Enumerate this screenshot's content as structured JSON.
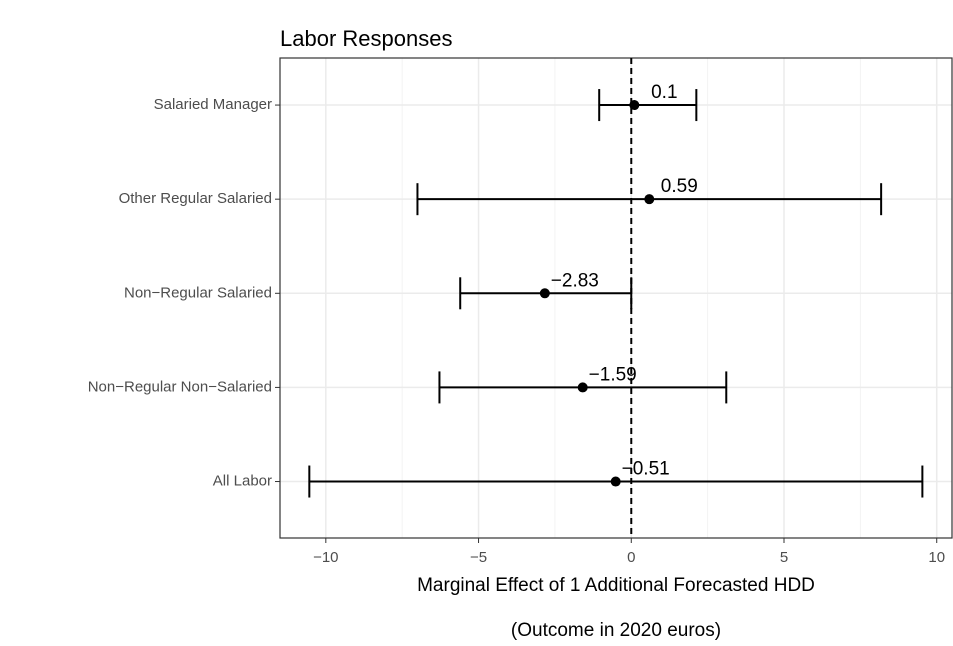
{
  "chart_data": {
    "type": "errorbar",
    "title": "Labor Responses",
    "x_label": "Marginal Effect of 1 Additional Forecasted HDD",
    "x_label_2": "(Outcome in 2020 euros)",
    "categories": [
      "Salaried Manager",
      "Other Regular Salaried",
      "Non−Regular Salaried",
      "Non−Regular Non−Salaried",
      "All Labor"
    ],
    "values": [
      0.1,
      0.59,
      -2.83,
      -1.59,
      -0.51
    ],
    "value_labels": [
      "0.1",
      "0.59",
      "−2.83",
      "−1.59",
      "−0.51"
    ],
    "lower": [
      -1.05,
      -7.0,
      -5.6,
      -6.28,
      -10.54
    ],
    "upper": [
      2.13,
      8.18,
      0.0,
      3.11,
      9.53
    ],
    "color": "#000000",
    "xlim": [
      -11.5,
      10.5
    ],
    "xticks": [
      {
        "value": -10,
        "label": "−10"
      },
      {
        "value": -5,
        "label": "−5"
      },
      0,
      5,
      10
    ],
    "xminor": [
      -7.5,
      -2.5,
      2.5,
      7.5
    ],
    "vline": 0,
    "grid": true
  }
}
